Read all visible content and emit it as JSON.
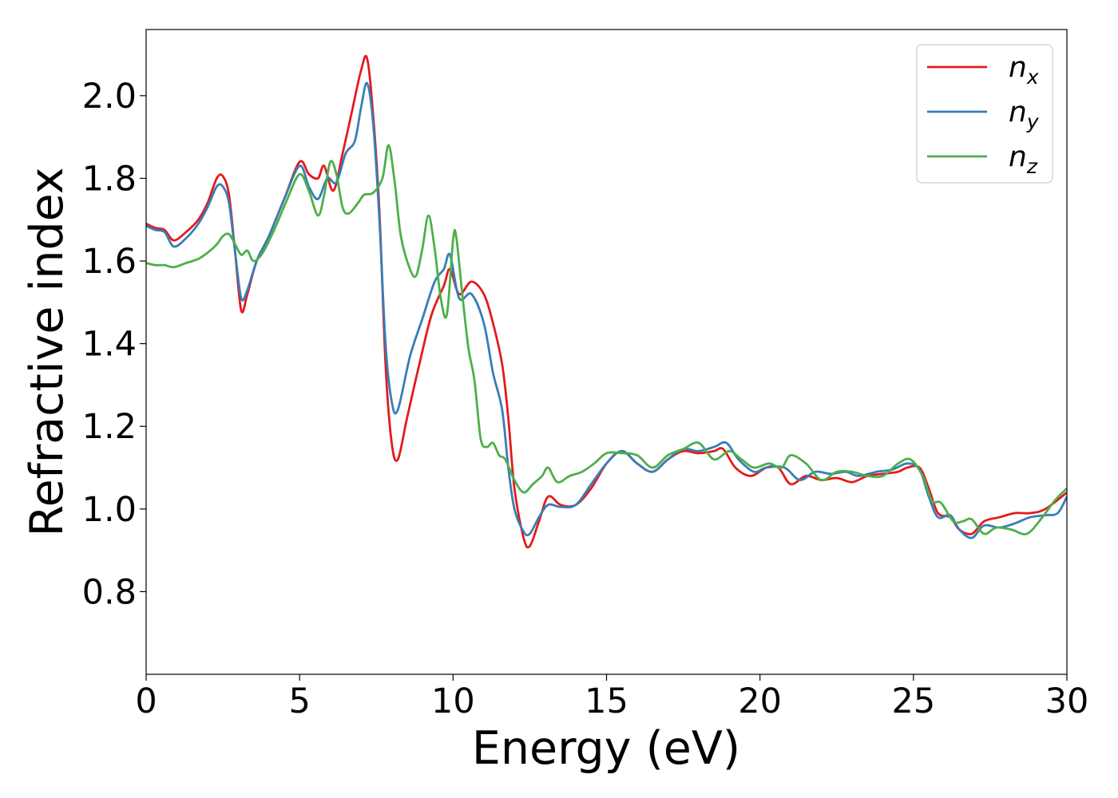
{
  "chart_data": {
    "type": "line",
    "xlabel": "Energy (eV)",
    "ylabel": "Refractive index",
    "xlim": [
      0,
      30
    ],
    "ylim": [
      0.6,
      2.16
    ],
    "xticks": [
      "0",
      "5",
      "10",
      "15",
      "20",
      "25",
      "30"
    ],
    "yticks": [
      "0.8",
      "1.0",
      "1.2",
      "1.4",
      "1.6",
      "1.8",
      "2.0"
    ],
    "grid": false,
    "legend_position": "top-right",
    "series": [
      {
        "name": "n",
        "subscript": "x",
        "color": "#e41a1c",
        "points": [
          [
            0,
            1.69
          ],
          [
            0.3,
            1.68
          ],
          [
            0.6,
            1.675
          ],
          [
            0.9,
            1.65
          ],
          [
            1.3,
            1.67
          ],
          [
            1.7,
            1.7
          ],
          [
            2.0,
            1.74
          ],
          [
            2.3,
            1.8
          ],
          [
            2.5,
            1.805
          ],
          [
            2.7,
            1.76
          ],
          [
            2.9,
            1.62
          ],
          [
            3.1,
            1.48
          ],
          [
            3.3,
            1.52
          ],
          [
            3.6,
            1.6
          ],
          [
            4.0,
            1.66
          ],
          [
            4.5,
            1.75
          ],
          [
            5.0,
            1.84
          ],
          [
            5.3,
            1.81
          ],
          [
            5.6,
            1.8
          ],
          [
            5.8,
            1.83
          ],
          [
            6.1,
            1.77
          ],
          [
            6.4,
            1.86
          ],
          [
            6.7,
            1.96
          ],
          [
            7.0,
            2.06
          ],
          [
            7.2,
            2.09
          ],
          [
            7.4,
            1.95
          ],
          [
            7.6,
            1.72
          ],
          [
            7.8,
            1.35
          ],
          [
            8.0,
            1.16
          ],
          [
            8.2,
            1.12
          ],
          [
            8.5,
            1.22
          ],
          [
            8.9,
            1.35
          ],
          [
            9.3,
            1.47
          ],
          [
            9.7,
            1.54
          ],
          [
            9.9,
            1.58
          ],
          [
            10.2,
            1.52
          ],
          [
            10.6,
            1.55
          ],
          [
            11.0,
            1.52
          ],
          [
            11.3,
            1.45
          ],
          [
            11.6,
            1.35
          ],
          [
            11.8,
            1.22
          ],
          [
            12.0,
            1.05
          ],
          [
            12.3,
            0.93
          ],
          [
            12.5,
            0.91
          ],
          [
            12.8,
            0.97
          ],
          [
            13.1,
            1.03
          ],
          [
            13.5,
            1.01
          ],
          [
            14.0,
            1.01
          ],
          [
            14.5,
            1.05
          ],
          [
            15.0,
            1.11
          ],
          [
            15.5,
            1.14
          ],
          [
            16.0,
            1.11
          ],
          [
            16.5,
            1.09
          ],
          [
            17.0,
            1.12
          ],
          [
            17.5,
            1.14
          ],
          [
            18.0,
            1.135
          ],
          [
            18.5,
            1.14
          ],
          [
            18.8,
            1.145
          ],
          [
            19.2,
            1.1
          ],
          [
            19.7,
            1.08
          ],
          [
            20.2,
            1.1
          ],
          [
            20.6,
            1.1
          ],
          [
            21.0,
            1.06
          ],
          [
            21.5,
            1.08
          ],
          [
            22.0,
            1.07
          ],
          [
            22.5,
            1.075
          ],
          [
            23.0,
            1.065
          ],
          [
            23.5,
            1.08
          ],
          [
            24.0,
            1.085
          ],
          [
            24.5,
            1.09
          ],
          [
            24.8,
            1.1
          ],
          [
            25.2,
            1.1
          ],
          [
            25.5,
            1.05
          ],
          [
            25.8,
            0.99
          ],
          [
            26.2,
            0.98
          ],
          [
            26.5,
            0.95
          ],
          [
            26.9,
            0.94
          ],
          [
            27.3,
            0.97
          ],
          [
            27.8,
            0.98
          ],
          [
            28.3,
            0.99
          ],
          [
            28.8,
            0.99
          ],
          [
            29.3,
            1.0
          ],
          [
            30.0,
            1.04
          ]
        ]
      },
      {
        "name": "n",
        "subscript": "y",
        "color": "#377eb8",
        "points": [
          [
            0,
            1.685
          ],
          [
            0.3,
            1.675
          ],
          [
            0.6,
            1.67
          ],
          [
            0.9,
            1.635
          ],
          [
            1.3,
            1.655
          ],
          [
            1.7,
            1.69
          ],
          [
            2.0,
            1.73
          ],
          [
            2.3,
            1.78
          ],
          [
            2.5,
            1.78
          ],
          [
            2.7,
            1.74
          ],
          [
            2.9,
            1.62
          ],
          [
            3.1,
            1.51
          ],
          [
            3.3,
            1.53
          ],
          [
            3.6,
            1.6
          ],
          [
            4.0,
            1.66
          ],
          [
            4.5,
            1.75
          ],
          [
            5.0,
            1.83
          ],
          [
            5.3,
            1.78
          ],
          [
            5.6,
            1.75
          ],
          [
            5.9,
            1.8
          ],
          [
            6.2,
            1.79
          ],
          [
            6.5,
            1.86
          ],
          [
            6.8,
            1.89
          ],
          [
            7.0,
            1.97
          ],
          [
            7.2,
            2.03
          ],
          [
            7.4,
            1.93
          ],
          [
            7.6,
            1.7
          ],
          [
            7.8,
            1.4
          ],
          [
            8.0,
            1.26
          ],
          [
            8.2,
            1.24
          ],
          [
            8.6,
            1.37
          ],
          [
            9.0,
            1.46
          ],
          [
            9.4,
            1.55
          ],
          [
            9.7,
            1.58
          ],
          [
            9.9,
            1.615
          ],
          [
            10.2,
            1.51
          ],
          [
            10.6,
            1.52
          ],
          [
            11.0,
            1.45
          ],
          [
            11.3,
            1.33
          ],
          [
            11.6,
            1.24
          ],
          [
            11.8,
            1.1
          ],
          [
            12.0,
            1.0
          ],
          [
            12.3,
            0.945
          ],
          [
            12.5,
            0.94
          ],
          [
            12.8,
            0.98
          ],
          [
            13.1,
            1.01
          ],
          [
            13.5,
            1.005
          ],
          [
            14.0,
            1.01
          ],
          [
            14.5,
            1.06
          ],
          [
            15.0,
            1.11
          ],
          [
            15.5,
            1.14
          ],
          [
            16.0,
            1.11
          ],
          [
            16.5,
            1.09
          ],
          [
            17.0,
            1.12
          ],
          [
            17.5,
            1.145
          ],
          [
            18.0,
            1.14
          ],
          [
            18.5,
            1.15
          ],
          [
            18.9,
            1.16
          ],
          [
            19.3,
            1.12
          ],
          [
            19.8,
            1.09
          ],
          [
            20.2,
            1.1
          ],
          [
            20.8,
            1.1
          ],
          [
            21.3,
            1.07
          ],
          [
            21.8,
            1.09
          ],
          [
            22.3,
            1.085
          ],
          [
            22.8,
            1.09
          ],
          [
            23.2,
            1.08
          ],
          [
            23.8,
            1.09
          ],
          [
            24.3,
            1.095
          ],
          [
            24.8,
            1.11
          ],
          [
            25.2,
            1.095
          ],
          [
            25.5,
            1.03
          ],
          [
            25.8,
            0.98
          ],
          [
            26.2,
            0.985
          ],
          [
            26.5,
            0.95
          ],
          [
            26.9,
            0.93
          ],
          [
            27.3,
            0.96
          ],
          [
            27.8,
            0.955
          ],
          [
            28.3,
            0.965
          ],
          [
            28.8,
            0.98
          ],
          [
            29.3,
            0.985
          ],
          [
            29.7,
            0.99
          ],
          [
            30.0,
            1.03
          ]
        ]
      },
      {
        "name": "n",
        "subscript": "z",
        "color": "#4daf4a",
        "points": [
          [
            0,
            1.595
          ],
          [
            0.3,
            1.59
          ],
          [
            0.6,
            1.59
          ],
          [
            0.9,
            1.585
          ],
          [
            1.3,
            1.595
          ],
          [
            1.7,
            1.605
          ],
          [
            2.0,
            1.62
          ],
          [
            2.3,
            1.64
          ],
          [
            2.5,
            1.66
          ],
          [
            2.7,
            1.665
          ],
          [
            2.9,
            1.64
          ],
          [
            3.1,
            1.615
          ],
          [
            3.3,
            1.625
          ],
          [
            3.5,
            1.6
          ],
          [
            3.8,
            1.62
          ],
          [
            4.2,
            1.68
          ],
          [
            4.6,
            1.75
          ],
          [
            5.0,
            1.81
          ],
          [
            5.3,
            1.77
          ],
          [
            5.6,
            1.71
          ],
          [
            5.8,
            1.76
          ],
          [
            6.0,
            1.84
          ],
          [
            6.2,
            1.81
          ],
          [
            6.4,
            1.73
          ],
          [
            6.6,
            1.715
          ],
          [
            6.9,
            1.74
          ],
          [
            7.1,
            1.76
          ],
          [
            7.4,
            1.765
          ],
          [
            7.7,
            1.8
          ],
          [
            7.9,
            1.88
          ],
          [
            8.1,
            1.79
          ],
          [
            8.3,
            1.66
          ],
          [
            8.6,
            1.58
          ],
          [
            8.8,
            1.565
          ],
          [
            9.0,
            1.63
          ],
          [
            9.2,
            1.71
          ],
          [
            9.4,
            1.63
          ],
          [
            9.6,
            1.51
          ],
          [
            9.8,
            1.47
          ],
          [
            10.0,
            1.65
          ],
          [
            10.1,
            1.66
          ],
          [
            10.3,
            1.52
          ],
          [
            10.5,
            1.39
          ],
          [
            10.7,
            1.31
          ],
          [
            10.9,
            1.17
          ],
          [
            11.1,
            1.15
          ],
          [
            11.3,
            1.16
          ],
          [
            11.5,
            1.13
          ],
          [
            11.7,
            1.12
          ],
          [
            12.0,
            1.07
          ],
          [
            12.3,
            1.04
          ],
          [
            12.6,
            1.06
          ],
          [
            12.9,
            1.08
          ],
          [
            13.1,
            1.1
          ],
          [
            13.4,
            1.065
          ],
          [
            13.8,
            1.08
          ],
          [
            14.2,
            1.09
          ],
          [
            14.6,
            1.11
          ],
          [
            15.0,
            1.135
          ],
          [
            15.5,
            1.135
          ],
          [
            16.0,
            1.13
          ],
          [
            16.5,
            1.1
          ],
          [
            17.0,
            1.13
          ],
          [
            17.5,
            1.145
          ],
          [
            18.0,
            1.16
          ],
          [
            18.5,
            1.12
          ],
          [
            19.0,
            1.14
          ],
          [
            19.4,
            1.12
          ],
          [
            19.8,
            1.1
          ],
          [
            20.3,
            1.11
          ],
          [
            20.7,
            1.1
          ],
          [
            21.0,
            1.13
          ],
          [
            21.5,
            1.11
          ],
          [
            22.0,
            1.07
          ],
          [
            22.5,
            1.09
          ],
          [
            23.0,
            1.09
          ],
          [
            23.5,
            1.08
          ],
          [
            24.0,
            1.08
          ],
          [
            24.5,
            1.11
          ],
          [
            24.9,
            1.12
          ],
          [
            25.3,
            1.08
          ],
          [
            25.6,
            1.02
          ],
          [
            25.9,
            1.015
          ],
          [
            26.3,
            0.97
          ],
          [
            26.6,
            0.97
          ],
          [
            26.9,
            0.975
          ],
          [
            27.3,
            0.94
          ],
          [
            27.7,
            0.955
          ],
          [
            28.2,
            0.95
          ],
          [
            28.7,
            0.94
          ],
          [
            29.2,
            0.98
          ],
          [
            29.6,
            1.02
          ],
          [
            30.0,
            1.05
          ]
        ]
      }
    ]
  }
}
